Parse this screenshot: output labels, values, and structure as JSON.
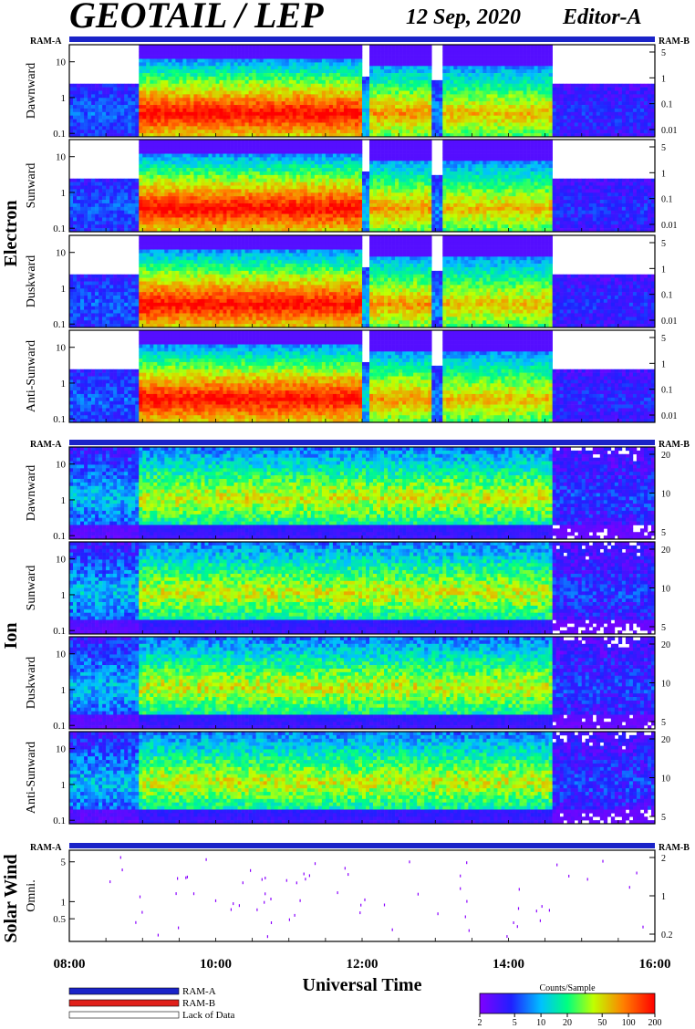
{
  "header": {
    "title": "GEOTAIL / LEP",
    "date": "12 Sep, 2020",
    "editor": "Editor-A"
  },
  "chart_data": {
    "type": "heatmap",
    "groups": [
      {
        "name": "Electron",
        "bar_left": "RAM-A",
        "bar_right": "RAM-B",
        "panels": [
          "Dawnward",
          "Sunward",
          "Duskward",
          "Anti-Sunward"
        ],
        "ylim": [
          0.08,
          30
        ],
        "left_ticks": [
          "10",
          "1",
          "0.1"
        ],
        "right_ticks": [
          "5",
          "1",
          "0.1",
          "0.01"
        ]
      },
      {
        "name": "Ion",
        "bar_left": "RAM-A",
        "bar_right": "RAM-B",
        "panels": [
          "Dawnward",
          "Sunward",
          "Duskward",
          "Anti-Sunward"
        ],
        "ylim": [
          0.08,
          30
        ],
        "left_ticks": [
          "10",
          "1",
          "0.1"
        ],
        "right_ticks": [
          "20",
          "10",
          "5"
        ]
      },
      {
        "name": "Solar Wind",
        "bar_left": "RAM-A",
        "bar_right": "RAM-B",
        "panels": [
          "Omni."
        ],
        "ylim": [
          0.2,
          8
        ],
        "left_ticks": [
          "5",
          "1",
          "0.5"
        ],
        "right_ticks": [
          "2",
          "1",
          "0.2"
        ]
      }
    ],
    "x_ticks": [
      "08:00",
      "10:00",
      "12:00",
      "14:00",
      "16:00"
    ],
    "x_range_hours": [
      8,
      16
    ],
    "xlabel": "Universal Time",
    "legend": [
      {
        "label": "RAM-A",
        "color": "#1a23c8"
      },
      {
        "label": "RAM-B",
        "color": "#e0201a"
      },
      {
        "label": "Lack of Data",
        "color": "#ffffff"
      }
    ],
    "colorbar": {
      "title": "Counts/Sample",
      "ticks": [
        "2",
        "5",
        "10",
        "20",
        "50",
        "100",
        "200"
      ]
    }
  }
}
